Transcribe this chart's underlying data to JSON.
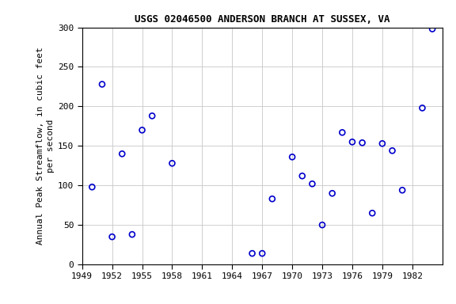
{
  "title": "USGS 02046500 ANDERSON BRANCH AT SUSSEX, VA",
  "ylabel_line1": "Annual Peak Streamflow, in cubic feet",
  "ylabel_line2": "per second",
  "xlim": [
    1949,
    1985
  ],
  "ylim": [
    0,
    300
  ],
  "xticks": [
    1949,
    1952,
    1955,
    1958,
    1961,
    1964,
    1967,
    1970,
    1973,
    1976,
    1979,
    1982
  ],
  "yticks": [
    0,
    50,
    100,
    150,
    200,
    250,
    300
  ],
  "years": [
    1950,
    1951,
    1952,
    1953,
    1954,
    1955,
    1956,
    1958,
    1966,
    1967,
    1968,
    1970,
    1971,
    1972,
    1973,
    1974,
    1975,
    1976,
    1977,
    1978,
    1979,
    1980,
    1981,
    1983,
    1984
  ],
  "flows": [
    98,
    228,
    35,
    140,
    38,
    170,
    188,
    128,
    14,
    14,
    83,
    136,
    112,
    102,
    50,
    90,
    167,
    155,
    154,
    65,
    153,
    144,
    94,
    198,
    298
  ],
  "marker_color": "#0000cc",
  "marker_size": 5,
  "marker_linewidth": 1.2,
  "background_color": "#ffffff",
  "grid_color": "#c8c8c8",
  "title_fontsize": 9,
  "label_fontsize": 8,
  "tick_fontsize": 8
}
